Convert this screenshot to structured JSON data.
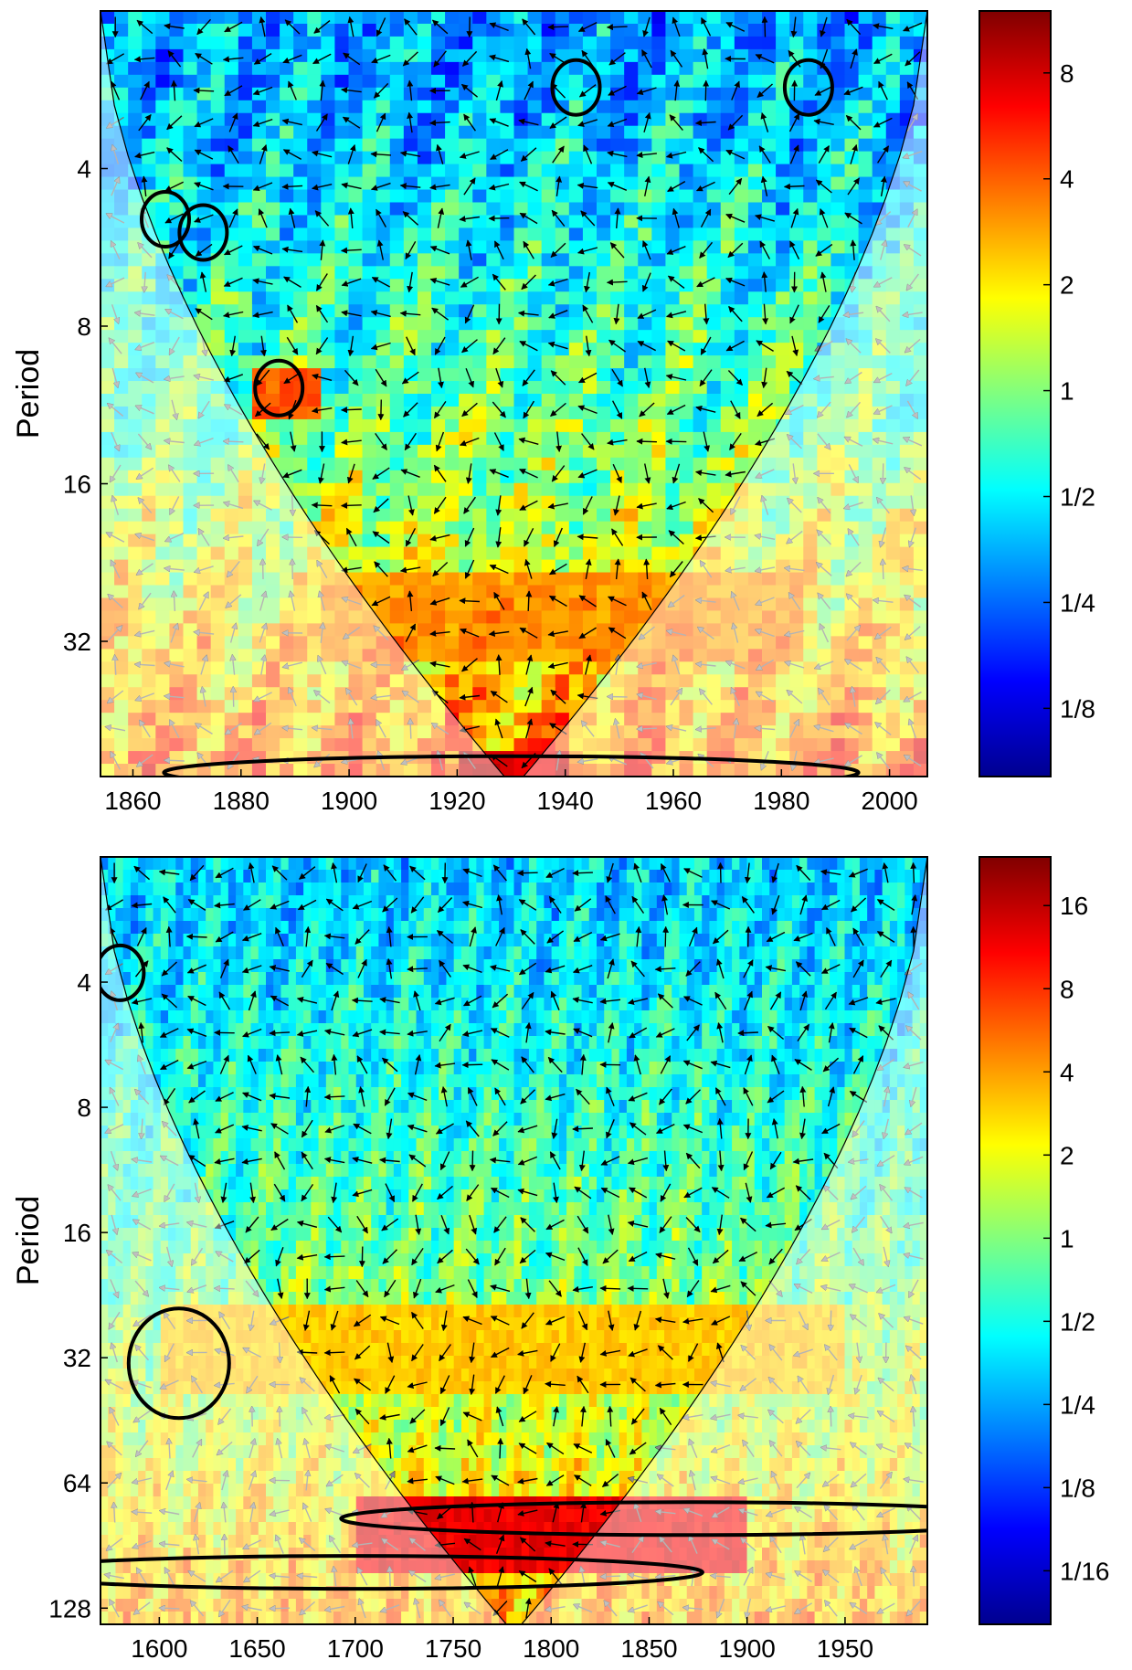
{
  "chart_data": [
    {
      "type": "heatmap",
      "title": "",
      "xlabel": "",
      "ylabel": "Period",
      "xlim": [
        1854,
        2007
      ],
      "x_ticks": [
        1860,
        1880,
        1900,
        1920,
        1940,
        1960,
        1980,
        2000
      ],
      "y_scale": "log2",
      "y_inverted": true,
      "ylim": [
        2,
        58
      ],
      "y_ticks": [
        4,
        8,
        16,
        32
      ],
      "colorbar": {
        "scale": "log2",
        "range": [
          0.08,
          12
        ],
        "ticks": [
          {
            "value": 0.125,
            "label": "1/8"
          },
          {
            "value": 0.25,
            "label": "1/4"
          },
          {
            "value": 0.5,
            "label": "1/2"
          },
          {
            "value": 1,
            "label": "1"
          },
          {
            "value": 2,
            "label": "2"
          },
          {
            "value": 4,
            "label": "4"
          },
          {
            "value": 8,
            "label": "8"
          }
        ]
      },
      "significance_contours": [
        {
          "x": 1866,
          "period": 5.0
        },
        {
          "x": 1873,
          "period": 5.3
        },
        {
          "x": 1887,
          "period": 10.5
        },
        {
          "x": 1942,
          "period": 2.8
        },
        {
          "x": 1985,
          "period": 2.8
        },
        {
          "x": 1930,
          "period": 57
        }
      ],
      "features": [
        {
          "x_range": [
            1880,
            1895
          ],
          "period_range": [
            9.5,
            12
          ],
          "level": 4
        },
        {
          "x_range": [
            1895,
            1985
          ],
          "period_range": [
            24,
            36
          ],
          "level": 3
        },
        {
          "x_range": [
            1920,
            1940
          ],
          "period_range": [
            54,
            58
          ],
          "level": 8
        }
      ]
    },
    {
      "type": "heatmap",
      "title": "",
      "xlabel": "",
      "ylabel": "Period",
      "xlim": [
        1570,
        1992
      ],
      "x_ticks": [
        1600,
        1650,
        1700,
        1750,
        1800,
        1850,
        1900,
        1950
      ],
      "y_scale": "log2",
      "y_inverted": true,
      "ylim": [
        2,
        140
      ],
      "y_ticks": [
        4,
        8,
        16,
        32,
        64,
        128
      ],
      "colorbar": {
        "scale": "log2",
        "range": [
          0.04,
          24
        ],
        "ticks": [
          {
            "value": 0.0625,
            "label": "1/16"
          },
          {
            "value": 0.125,
            "label": "1/8"
          },
          {
            "value": 0.25,
            "label": "1/4"
          },
          {
            "value": 0.5,
            "label": "1/2"
          },
          {
            "value": 1,
            "label": "1"
          },
          {
            "value": 2,
            "label": "2"
          },
          {
            "value": 4,
            "label": "4"
          },
          {
            "value": 8,
            "label": "8"
          },
          {
            "value": 16,
            "label": "16"
          }
        ]
      },
      "significance_contours": [
        {
          "x": 1580,
          "period": 3.8
        },
        {
          "x": 1610,
          "period": 33
        },
        {
          "x": 1870,
          "period": 78
        },
        {
          "x": 1700,
          "period": 105
        }
      ],
      "features": [
        {
          "x_range": [
            1600,
            1950
          ],
          "period_range": [
            24,
            40
          ],
          "level": 3
        },
        {
          "x_range": [
            1700,
            1900
          ],
          "period_range": [
            70,
            110
          ],
          "level": 12
        }
      ]
    }
  ],
  "colors": {
    "colormap": "jet",
    "contour": "#000000",
    "cone_shade": "#ffffff"
  }
}
